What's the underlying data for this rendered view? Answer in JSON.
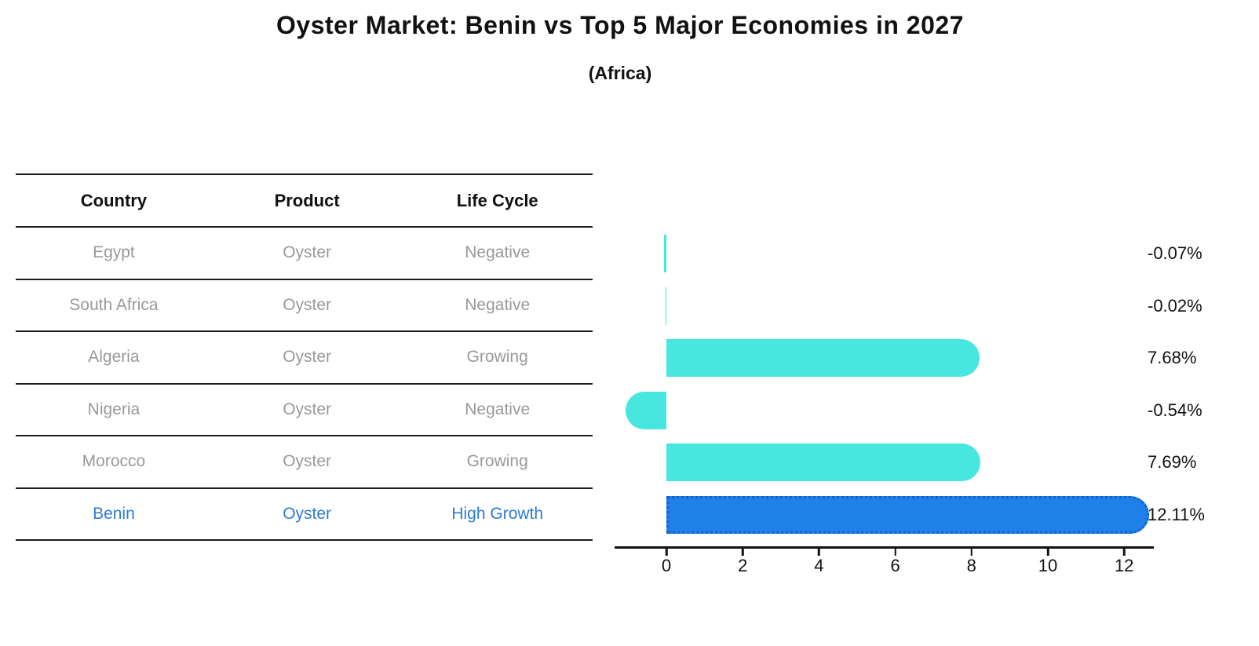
{
  "title": "Oyster Market: Benin vs Top 5 Major Economies in 2027",
  "subtitle": "(Africa)",
  "table": {
    "headers": [
      "Country",
      "Product",
      "Life Cycle"
    ],
    "rows": [
      {
        "country": "Egypt",
        "product": "Oyster",
        "life_cycle": "Negative",
        "highlight": false
      },
      {
        "country": "South Africa",
        "product": "Oyster",
        "life_cycle": "Negative",
        "highlight": false
      },
      {
        "country": "Algeria",
        "product": "Oyster",
        "life_cycle": "Growing",
        "highlight": false
      },
      {
        "country": "Nigeria",
        "product": "Oyster",
        "life_cycle": "Negative",
        "highlight": false
      },
      {
        "country": "Morocco",
        "product": "Oyster",
        "life_cycle": "Growing",
        "highlight": false
      },
      {
        "country": "Benin",
        "product": "Oyster",
        "life_cycle": "High Growth",
        "highlight": true
      }
    ]
  },
  "chart_data": {
    "type": "bar",
    "orientation": "horizontal",
    "categories": [
      "Egypt",
      "South Africa",
      "Algeria",
      "Nigeria",
      "Morocco",
      "Benin"
    ],
    "values": [
      -0.07,
      -0.02,
      7.68,
      -0.54,
      7.69,
      12.11
    ],
    "value_labels": [
      "-0.07%",
      "-0.02%",
      "7.68%",
      "-0.54%",
      "7.69%",
      "12.11%"
    ],
    "x_ticks": [
      0,
      2,
      4,
      6,
      8,
      10,
      12
    ],
    "xlim": [
      -1.35,
      12.75
    ],
    "grid": false,
    "legend": "none",
    "bar_color": "#47e7df",
    "highlight_color": "#1e80e8",
    "highlight_index": 5,
    "highlight_border_style": "dotted",
    "label_color": "#111111"
  },
  "colors": {
    "title_text": "#111111",
    "table_text_muted": "#999999",
    "table_highlight_text": "#2b7bd4",
    "axis": "#111111",
    "background": "#ffffff"
  }
}
